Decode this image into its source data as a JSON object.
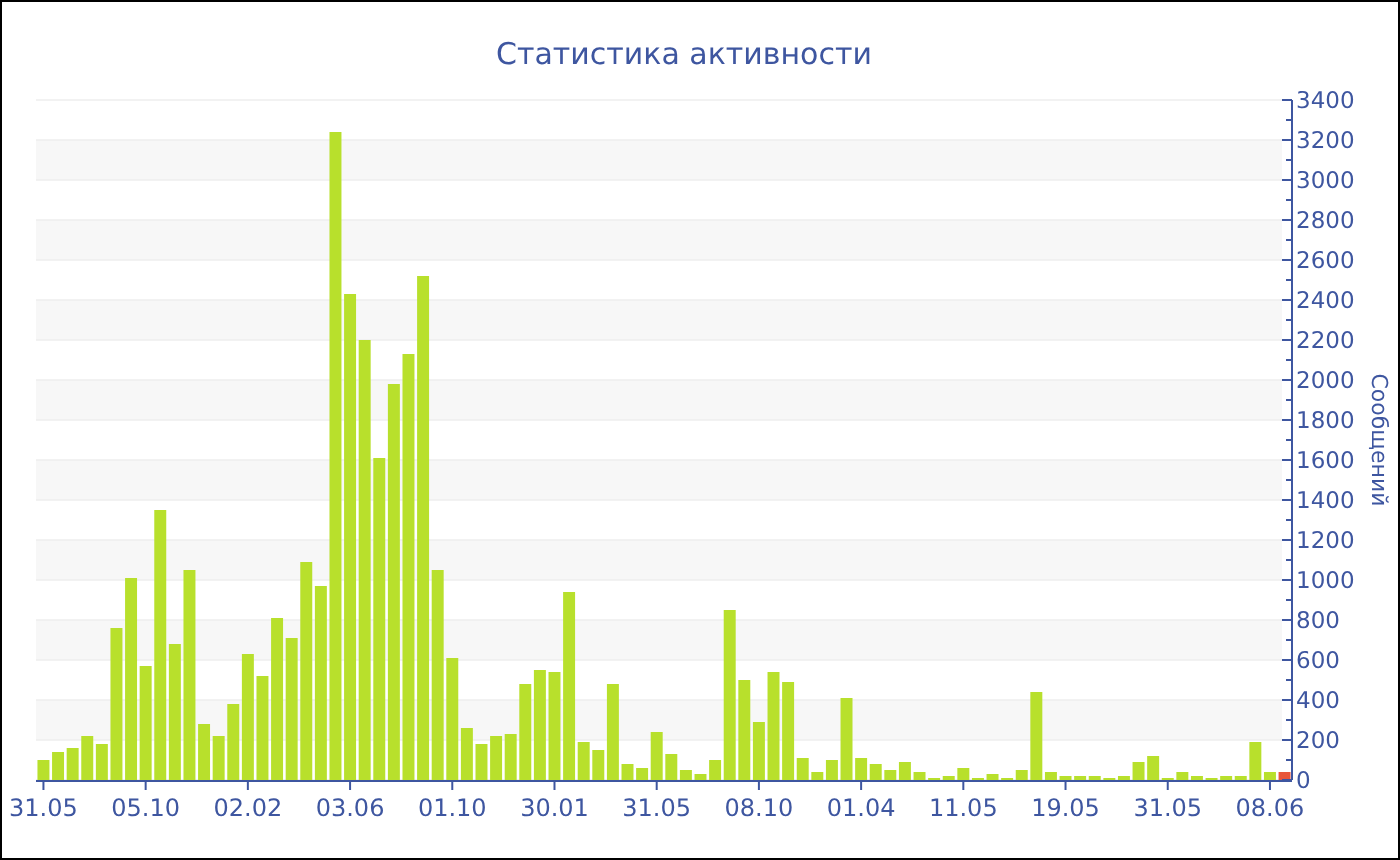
{
  "chart_data": {
    "type": "bar",
    "title": "Статистика активности",
    "ylabel": "Сообщений",
    "categories": [
      "31.05",
      null,
      null,
      null,
      null,
      null,
      null,
      "05.10",
      null,
      null,
      null,
      null,
      null,
      null,
      "02.02",
      null,
      null,
      null,
      null,
      null,
      null,
      "03.06",
      null,
      null,
      null,
      null,
      null,
      null,
      "01.10",
      null,
      null,
      null,
      null,
      null,
      null,
      "30.01",
      null,
      null,
      null,
      null,
      null,
      null,
      "31.05",
      null,
      null,
      null,
      null,
      null,
      null,
      "08.10",
      null,
      null,
      null,
      null,
      null,
      null,
      "01.04",
      null,
      null,
      null,
      null,
      null,
      null,
      "11.05",
      null,
      null,
      null,
      null,
      null,
      null,
      "19.05",
      null,
      null,
      null,
      null,
      null,
      null,
      "31.05",
      null,
      null,
      null,
      null,
      null,
      null,
      "08.06",
      null
    ],
    "values": [
      100,
      140,
      160,
      220,
      180,
      760,
      1010,
      570,
      1350,
      680,
      1050,
      280,
      220,
      380,
      630,
      520,
      810,
      710,
      1090,
      970,
      3240,
      2430,
      2200,
      1610,
      1980,
      2130,
      2520,
      1050,
      610,
      260,
      180,
      220,
      230,
      480,
      550,
      540,
      940,
      190,
      150,
      480,
      80,
      60,
      240,
      130,
      50,
      30,
      100,
      850,
      500,
      290,
      540,
      490,
      110,
      40,
      100,
      410,
      110,
      80,
      50,
      90,
      40,
      10,
      20,
      60,
      10,
      30,
      10,
      50,
      440,
      40,
      20,
      20,
      20,
      10,
      20,
      90,
      120,
      10,
      40,
      20,
      10,
      20,
      20,
      190,
      40,
      40
    ],
    "colors": [
      "#b8e02c",
      "#b8e02c",
      "#b8e02c",
      "#b8e02c",
      "#b8e02c",
      "#b8e02c",
      "#b8e02c",
      "#b8e02c",
      "#b8e02c",
      "#b8e02c",
      "#b8e02c",
      "#b8e02c",
      "#b8e02c",
      "#b8e02c",
      "#b8e02c",
      "#b8e02c",
      "#b8e02c",
      "#b8e02c",
      "#b8e02c",
      "#b8e02c",
      "#b8e02c",
      "#b8e02c",
      "#b8e02c",
      "#b8e02c",
      "#b8e02c",
      "#b8e02c",
      "#b8e02c",
      "#b8e02c",
      "#b8e02c",
      "#b8e02c",
      "#b8e02c",
      "#b8e02c",
      "#b8e02c",
      "#b8e02c",
      "#b8e02c",
      "#b8e02c",
      "#b8e02c",
      "#b8e02c",
      "#b8e02c",
      "#b8e02c",
      "#b8e02c",
      "#b8e02c",
      "#b8e02c",
      "#b8e02c",
      "#b8e02c",
      "#b8e02c",
      "#b8e02c",
      "#b8e02c",
      "#b8e02c",
      "#b8e02c",
      "#b8e02c",
      "#b8e02c",
      "#b8e02c",
      "#b8e02c",
      "#b8e02c",
      "#b8e02c",
      "#b8e02c",
      "#b8e02c",
      "#b8e02c",
      "#b8e02c",
      "#b8e02c",
      "#b8e02c",
      "#b8e02c",
      "#b8e02c",
      "#b8e02c",
      "#b8e02c",
      "#b8e02c",
      "#b8e02c",
      "#b8e02c",
      "#b8e02c",
      "#b8e02c",
      "#b8e02c",
      "#b8e02c",
      "#b8e02c",
      "#b8e02c",
      "#b8e02c",
      "#b8e02c",
      "#b8e02c",
      "#b8e02c",
      "#b8e02c",
      "#b8e02c",
      "#b8e02c",
      "#b8e02c",
      "#b8e02c",
      "#b8e02c",
      "#e8563a"
    ],
    "ylim": [
      0,
      3400
    ],
    "yticks": [
      0,
      {
        "value": 100,
        "label": null
      },
      200,
      {
        "value": 300,
        "label": null
      },
      400,
      {
        "value": 500,
        "label": null
      },
      600,
      {
        "value": 700,
        "label": null
      },
      800,
      {
        "value": 900,
        "label": null
      },
      1000,
      {
        "value": 1100,
        "label": null
      },
      1200,
      {
        "value": 1300,
        "label": null
      },
      1400,
      {
        "value": 1500,
        "label": null
      },
      1600,
      {
        "value": 1700,
        "label": null
      },
      1800,
      {
        "value": 1900,
        "label": null
      },
      2000,
      {
        "value": 2100,
        "label": null
      },
      2200,
      {
        "value": 2300,
        "label": null
      },
      2400,
      {
        "value": 2500,
        "label": null
      },
      2600,
      {
        "value": 2700,
        "label": null
      },
      2800,
      {
        "value": 2900,
        "label": null
      },
      3000,
      {
        "value": 3100,
        "label": null
      },
      3200,
      {
        "value": 3300,
        "label": null
      },
      3400
    ],
    "grid": "y"
  }
}
